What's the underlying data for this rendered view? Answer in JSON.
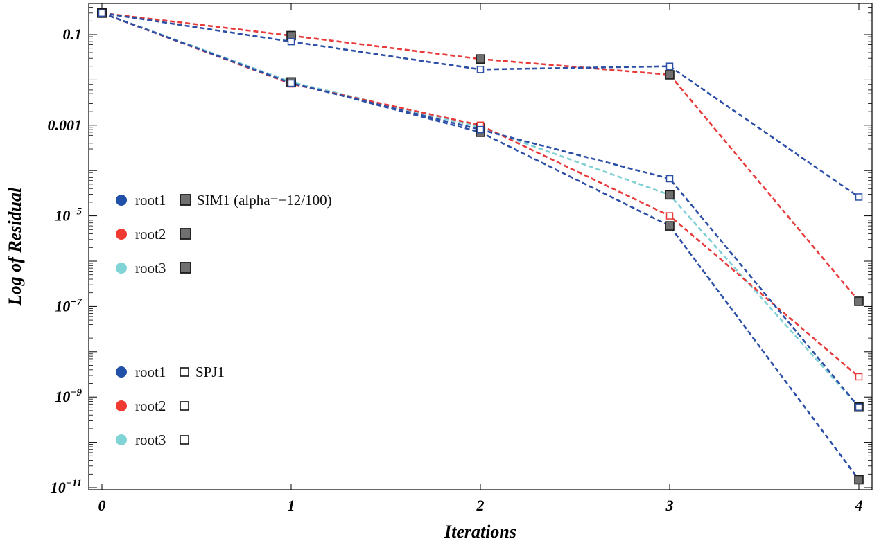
{
  "chart_data": {
    "type": "line",
    "xlabel": "Iterations",
    "ylabel": "Log of Residual",
    "yscale": "log",
    "xlim": [
      0,
      4
    ],
    "ylim": [
      1e-11,
      1
    ],
    "x_ticks": [
      "0",
      "1",
      "2",
      "3",
      "4"
    ],
    "y_ticks": [
      {
        "value": 0.1,
        "base": "0.1",
        "exp": ""
      },
      {
        "value": 0.001,
        "base": "0.001",
        "exp": ""
      },
      {
        "value": 1e-05,
        "base": "10",
        "exp": "−5"
      },
      {
        "value": 1e-07,
        "base": "10",
        "exp": "−7"
      },
      {
        "value": 1e-09,
        "base": "10",
        "exp": "−9"
      },
      {
        "value": 1e-11,
        "base": "10",
        "exp": "−11"
      }
    ],
    "x": [
      0,
      1,
      2,
      3,
      4
    ],
    "series": [
      {
        "method": "SIM1",
        "root": "root1",
        "color": "#2b4ea6",
        "marker": "filled-square",
        "values": [
          0.3,
          0.009,
          0.0007,
          6e-06,
          1.5e-11
        ]
      },
      {
        "method": "SIM1",
        "root": "root2",
        "color": "#e83a3a",
        "marker": "filled-square",
        "values": [
          0.3,
          0.095,
          0.029,
          0.013,
          1.3e-07
        ]
      },
      {
        "method": "SIM1",
        "root": "root3",
        "color": "#7fd0d4",
        "marker": "filled-square",
        "values": [
          0.3,
          0.009,
          0.0009,
          2.9e-05,
          6e-10
        ]
      },
      {
        "method": "SPJ1",
        "root": "root1",
        "color": "#2b4ea6",
        "marker": "open-square",
        "values": [
          0.3,
          0.07,
          0.017,
          0.02,
          2.6e-05
        ]
      },
      {
        "method": "SPJ1",
        "root": "root2",
        "color": "#e83a3a",
        "marker": "open-square",
        "values": [
          0.3,
          0.0082,
          0.001,
          1e-05,
          2.8e-09
        ]
      },
      {
        "method": "SPJ1",
        "root": "root3",
        "color": "#2b4ea6",
        "marker": "open-square",
        "values": [
          0.3,
          0.0085,
          0.0008,
          6.6e-05,
          6e-10
        ]
      }
    ],
    "legend": {
      "groups": [
        {
          "label": "SIM1 (alpha=−12/100)",
          "marker": "filled-square",
          "entries": [
            {
              "label": "root1",
              "color": "#2150a8"
            },
            {
              "label": "root2",
              "color": "#ee3a30"
            },
            {
              "label": "root3",
              "color": "#80d4d6"
            }
          ]
        },
        {
          "label": "SPJ1",
          "marker": "open-square",
          "entries": [
            {
              "label": "root1",
              "color": "#2150a8"
            },
            {
              "label": "root2",
              "color": "#ee3a30"
            },
            {
              "label": "root3",
              "color": "#80d4d6"
            }
          ]
        }
      ]
    }
  }
}
